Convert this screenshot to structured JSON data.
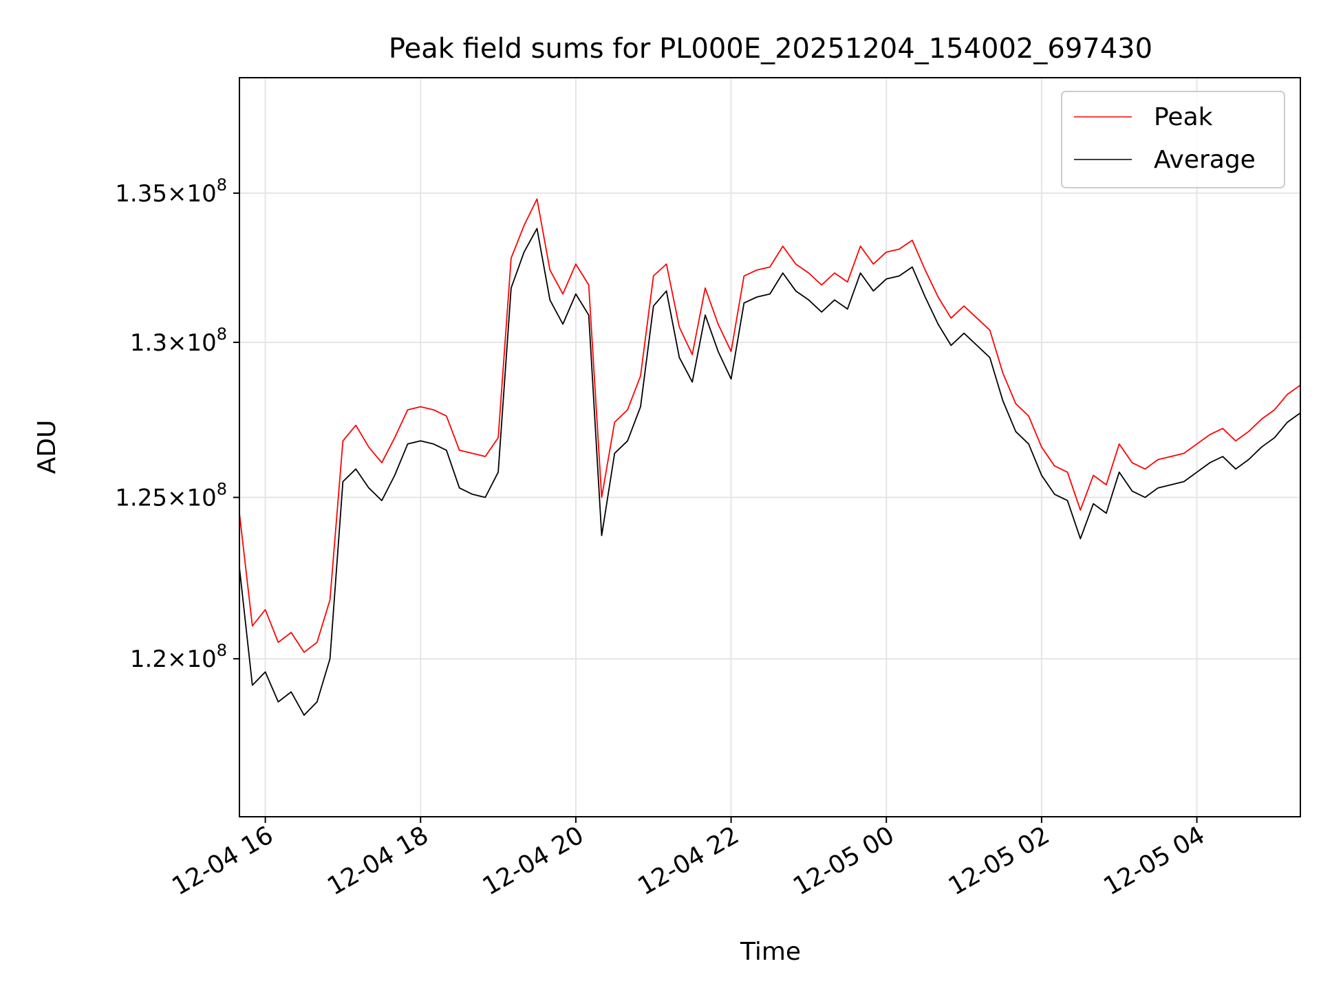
{
  "chart_data": {
    "type": "line",
    "title": "Peak field sums for PL000E_20251204_154002_697430",
    "xlabel": "Time",
    "ylabel": "ADU",
    "grid": true,
    "legend_position": "top-right",
    "xlim": [
      "2025-12-04 15:40",
      "2025-12-05 05:20"
    ],
    "ylim": [
      115300000,
      139000000
    ],
    "y_scale": "log",
    "x_ticks": [
      {
        "t": "2025-12-04 16:00",
        "label": "12-04 16"
      },
      {
        "t": "2025-12-04 18:00",
        "label": "12-04 18"
      },
      {
        "t": "2025-12-04 20:00",
        "label": "12-04 20"
      },
      {
        "t": "2025-12-04 22:00",
        "label": "12-04 22"
      },
      {
        "t": "2025-12-05 00:00",
        "label": "12-05 00"
      },
      {
        "t": "2025-12-05 02:00",
        "label": "12-05 02"
      },
      {
        "t": "2025-12-05 04:00",
        "label": "12-05 04"
      }
    ],
    "y_ticks": [
      {
        "value": 120000000,
        "mantissa": "1.2"
      },
      {
        "value": 125000000,
        "mantissa": "1.25"
      },
      {
        "value": 130000000,
        "mantissa": "1.3"
      },
      {
        "value": 135000000,
        "mantissa": "1.35"
      }
    ],
    "y_tick_base": "10",
    "y_tick_exponent": "8",
    "series": [
      {
        "name": "Peak",
        "color": "#ff0000",
        "x": [
          "2025-12-04 15:40",
          "2025-12-04 15:50",
          "2025-12-04 16:00",
          "2025-12-04 16:10",
          "2025-12-04 16:20",
          "2025-12-04 16:30",
          "2025-12-04 16:40",
          "2025-12-04 16:50",
          "2025-12-04 17:00",
          "2025-12-04 17:10",
          "2025-12-04 17:20",
          "2025-12-04 17:30",
          "2025-12-04 17:40",
          "2025-12-04 17:50",
          "2025-12-04 18:00",
          "2025-12-04 18:10",
          "2025-12-04 18:20",
          "2025-12-04 18:30",
          "2025-12-04 18:40",
          "2025-12-04 18:50",
          "2025-12-04 19:00",
          "2025-12-04 19:10",
          "2025-12-04 19:20",
          "2025-12-04 19:30",
          "2025-12-04 19:40",
          "2025-12-04 19:50",
          "2025-12-04 20:00",
          "2025-12-04 20:10",
          "2025-12-04 20:20",
          "2025-12-04 20:30",
          "2025-12-04 20:40",
          "2025-12-04 20:50",
          "2025-12-04 21:00",
          "2025-12-04 21:10",
          "2025-12-04 21:20",
          "2025-12-04 21:30",
          "2025-12-04 21:40",
          "2025-12-04 21:50",
          "2025-12-04 22:00",
          "2025-12-04 22:10",
          "2025-12-04 22:20",
          "2025-12-04 22:30",
          "2025-12-04 22:40",
          "2025-12-04 22:50",
          "2025-12-04 23:00",
          "2025-12-04 23:10",
          "2025-12-04 23:20",
          "2025-12-04 23:30",
          "2025-12-04 23:40",
          "2025-12-04 23:50",
          "2025-12-05 00:00",
          "2025-12-05 00:10",
          "2025-12-05 00:20",
          "2025-12-05 00:30",
          "2025-12-05 00:40",
          "2025-12-05 00:50",
          "2025-12-05 01:00",
          "2025-12-05 01:10",
          "2025-12-05 01:20",
          "2025-12-05 01:30",
          "2025-12-05 01:40",
          "2025-12-05 01:50",
          "2025-12-05 02:00",
          "2025-12-05 02:10",
          "2025-12-05 02:20",
          "2025-12-05 02:30",
          "2025-12-05 02:40",
          "2025-12-05 02:50",
          "2025-12-05 03:00",
          "2025-12-05 03:10",
          "2025-12-05 03:20",
          "2025-12-05 03:30",
          "2025-12-05 03:40",
          "2025-12-05 03:50",
          "2025-12-05 04:00",
          "2025-12-05 04:10",
          "2025-12-05 04:20",
          "2025-12-05 04:30",
          "2025-12-05 04:40",
          "2025-12-05 04:50",
          "2025-12-05 05:00",
          "2025-12-05 05:10",
          "2025-12-05 05:20"
        ],
        "values": [
          124500000,
          121000000,
          121500000,
          120500000,
          120800000,
          120200000,
          120500000,
          121800000,
          126800000,
          127300000,
          126600000,
          126100000,
          126900000,
          127800000,
          127900000,
          127800000,
          127600000,
          126500000,
          126400000,
          126300000,
          126900000,
          132800000,
          133900000,
          134800000,
          132400000,
          131600000,
          132600000,
          131900000,
          125000000,
          127400000,
          127800000,
          128900000,
          132200000,
          132600000,
          130500000,
          129600000,
          131800000,
          130600000,
          129700000,
          132200000,
          132400000,
          132500000,
          133200000,
          132600000,
          132300000,
          131900000,
          132300000,
          132000000,
          133200000,
          132600000,
          133000000,
          133100000,
          133400000,
          132400000,
          131500000,
          130800000,
          131200000,
          130800000,
          130400000,
          129000000,
          128000000,
          127600000,
          126600000,
          126000000,
          125800000,
          124600000,
          125700000,
          125400000,
          126700000,
          126100000,
          125900000,
          126200000,
          126300000,
          126400000,
          126700000,
          127000000,
          127200000,
          126800000,
          127100000,
          127500000,
          127800000,
          128300000,
          128600000
        ]
      },
      {
        "name": "Average",
        "color": "#000000",
        "x": [
          "2025-12-04 15:40",
          "2025-12-04 15:50",
          "2025-12-04 16:00",
          "2025-12-04 16:10",
          "2025-12-04 16:20",
          "2025-12-04 16:30",
          "2025-12-04 16:40",
          "2025-12-04 16:50",
          "2025-12-04 17:00",
          "2025-12-04 17:10",
          "2025-12-04 17:20",
          "2025-12-04 17:30",
          "2025-12-04 17:40",
          "2025-12-04 17:50",
          "2025-12-04 18:00",
          "2025-12-04 18:10",
          "2025-12-04 18:20",
          "2025-12-04 18:30",
          "2025-12-04 18:40",
          "2025-12-04 18:50",
          "2025-12-04 19:00",
          "2025-12-04 19:10",
          "2025-12-04 19:20",
          "2025-12-04 19:30",
          "2025-12-04 19:40",
          "2025-12-04 19:50",
          "2025-12-04 20:00",
          "2025-12-04 20:10",
          "2025-12-04 20:20",
          "2025-12-04 20:30",
          "2025-12-04 20:40",
          "2025-12-04 20:50",
          "2025-12-04 21:00",
          "2025-12-04 21:10",
          "2025-12-04 21:20",
          "2025-12-04 21:30",
          "2025-12-04 21:40",
          "2025-12-04 21:50",
          "2025-12-04 22:00",
          "2025-12-04 22:10",
          "2025-12-04 22:20",
          "2025-12-04 22:30",
          "2025-12-04 22:40",
          "2025-12-04 22:50",
          "2025-12-04 23:00",
          "2025-12-04 23:10",
          "2025-12-04 23:20",
          "2025-12-04 23:30",
          "2025-12-04 23:40",
          "2025-12-04 23:50",
          "2025-12-05 00:00",
          "2025-12-05 00:10",
          "2025-12-05 00:20",
          "2025-12-05 00:30",
          "2025-12-05 00:40",
          "2025-12-05 00:50",
          "2025-12-05 01:00",
          "2025-12-05 01:10",
          "2025-12-05 01:20",
          "2025-12-05 01:30",
          "2025-12-05 01:40",
          "2025-12-05 01:50",
          "2025-12-05 02:00",
          "2025-12-05 02:10",
          "2025-12-05 02:20",
          "2025-12-05 02:30",
          "2025-12-05 02:40",
          "2025-12-05 02:50",
          "2025-12-05 03:00",
          "2025-12-05 03:10",
          "2025-12-05 03:20",
          "2025-12-05 03:30",
          "2025-12-05 03:40",
          "2025-12-05 03:50",
          "2025-12-05 04:00",
          "2025-12-05 04:10",
          "2025-12-05 04:20",
          "2025-12-05 04:30",
          "2025-12-05 04:40",
          "2025-12-05 04:50",
          "2025-12-05 05:00",
          "2025-12-05 05:10",
          "2025-12-05 05:20"
        ],
        "values": [
          122800000,
          119200000,
          119600000,
          118700000,
          119000000,
          118300000,
          118700000,
          120000000,
          125500000,
          125900000,
          125300000,
          124900000,
          125700000,
          126700000,
          126800000,
          126700000,
          126500000,
          125300000,
          125100000,
          125000000,
          125800000,
          131800000,
          133000000,
          133800000,
          131400000,
          130600000,
          131600000,
          130900000,
          123800000,
          126400000,
          126800000,
          127900000,
          131200000,
          131700000,
          129500000,
          128700000,
          130900000,
          129700000,
          128800000,
          131300000,
          131500000,
          131600000,
          132300000,
          131700000,
          131400000,
          131000000,
          131400000,
          131100000,
          132300000,
          131700000,
          132100000,
          132200000,
          132500000,
          131500000,
          130600000,
          129900000,
          130300000,
          129900000,
          129500000,
          128100000,
          127100000,
          126700000,
          125700000,
          125100000,
          124900000,
          123700000,
          124800000,
          124500000,
          125800000,
          125200000,
          125000000,
          125300000,
          125400000,
          125500000,
          125800000,
          126100000,
          126300000,
          125900000,
          126200000,
          126600000,
          126900000,
          127400000,
          127700000
        ]
      }
    ]
  }
}
